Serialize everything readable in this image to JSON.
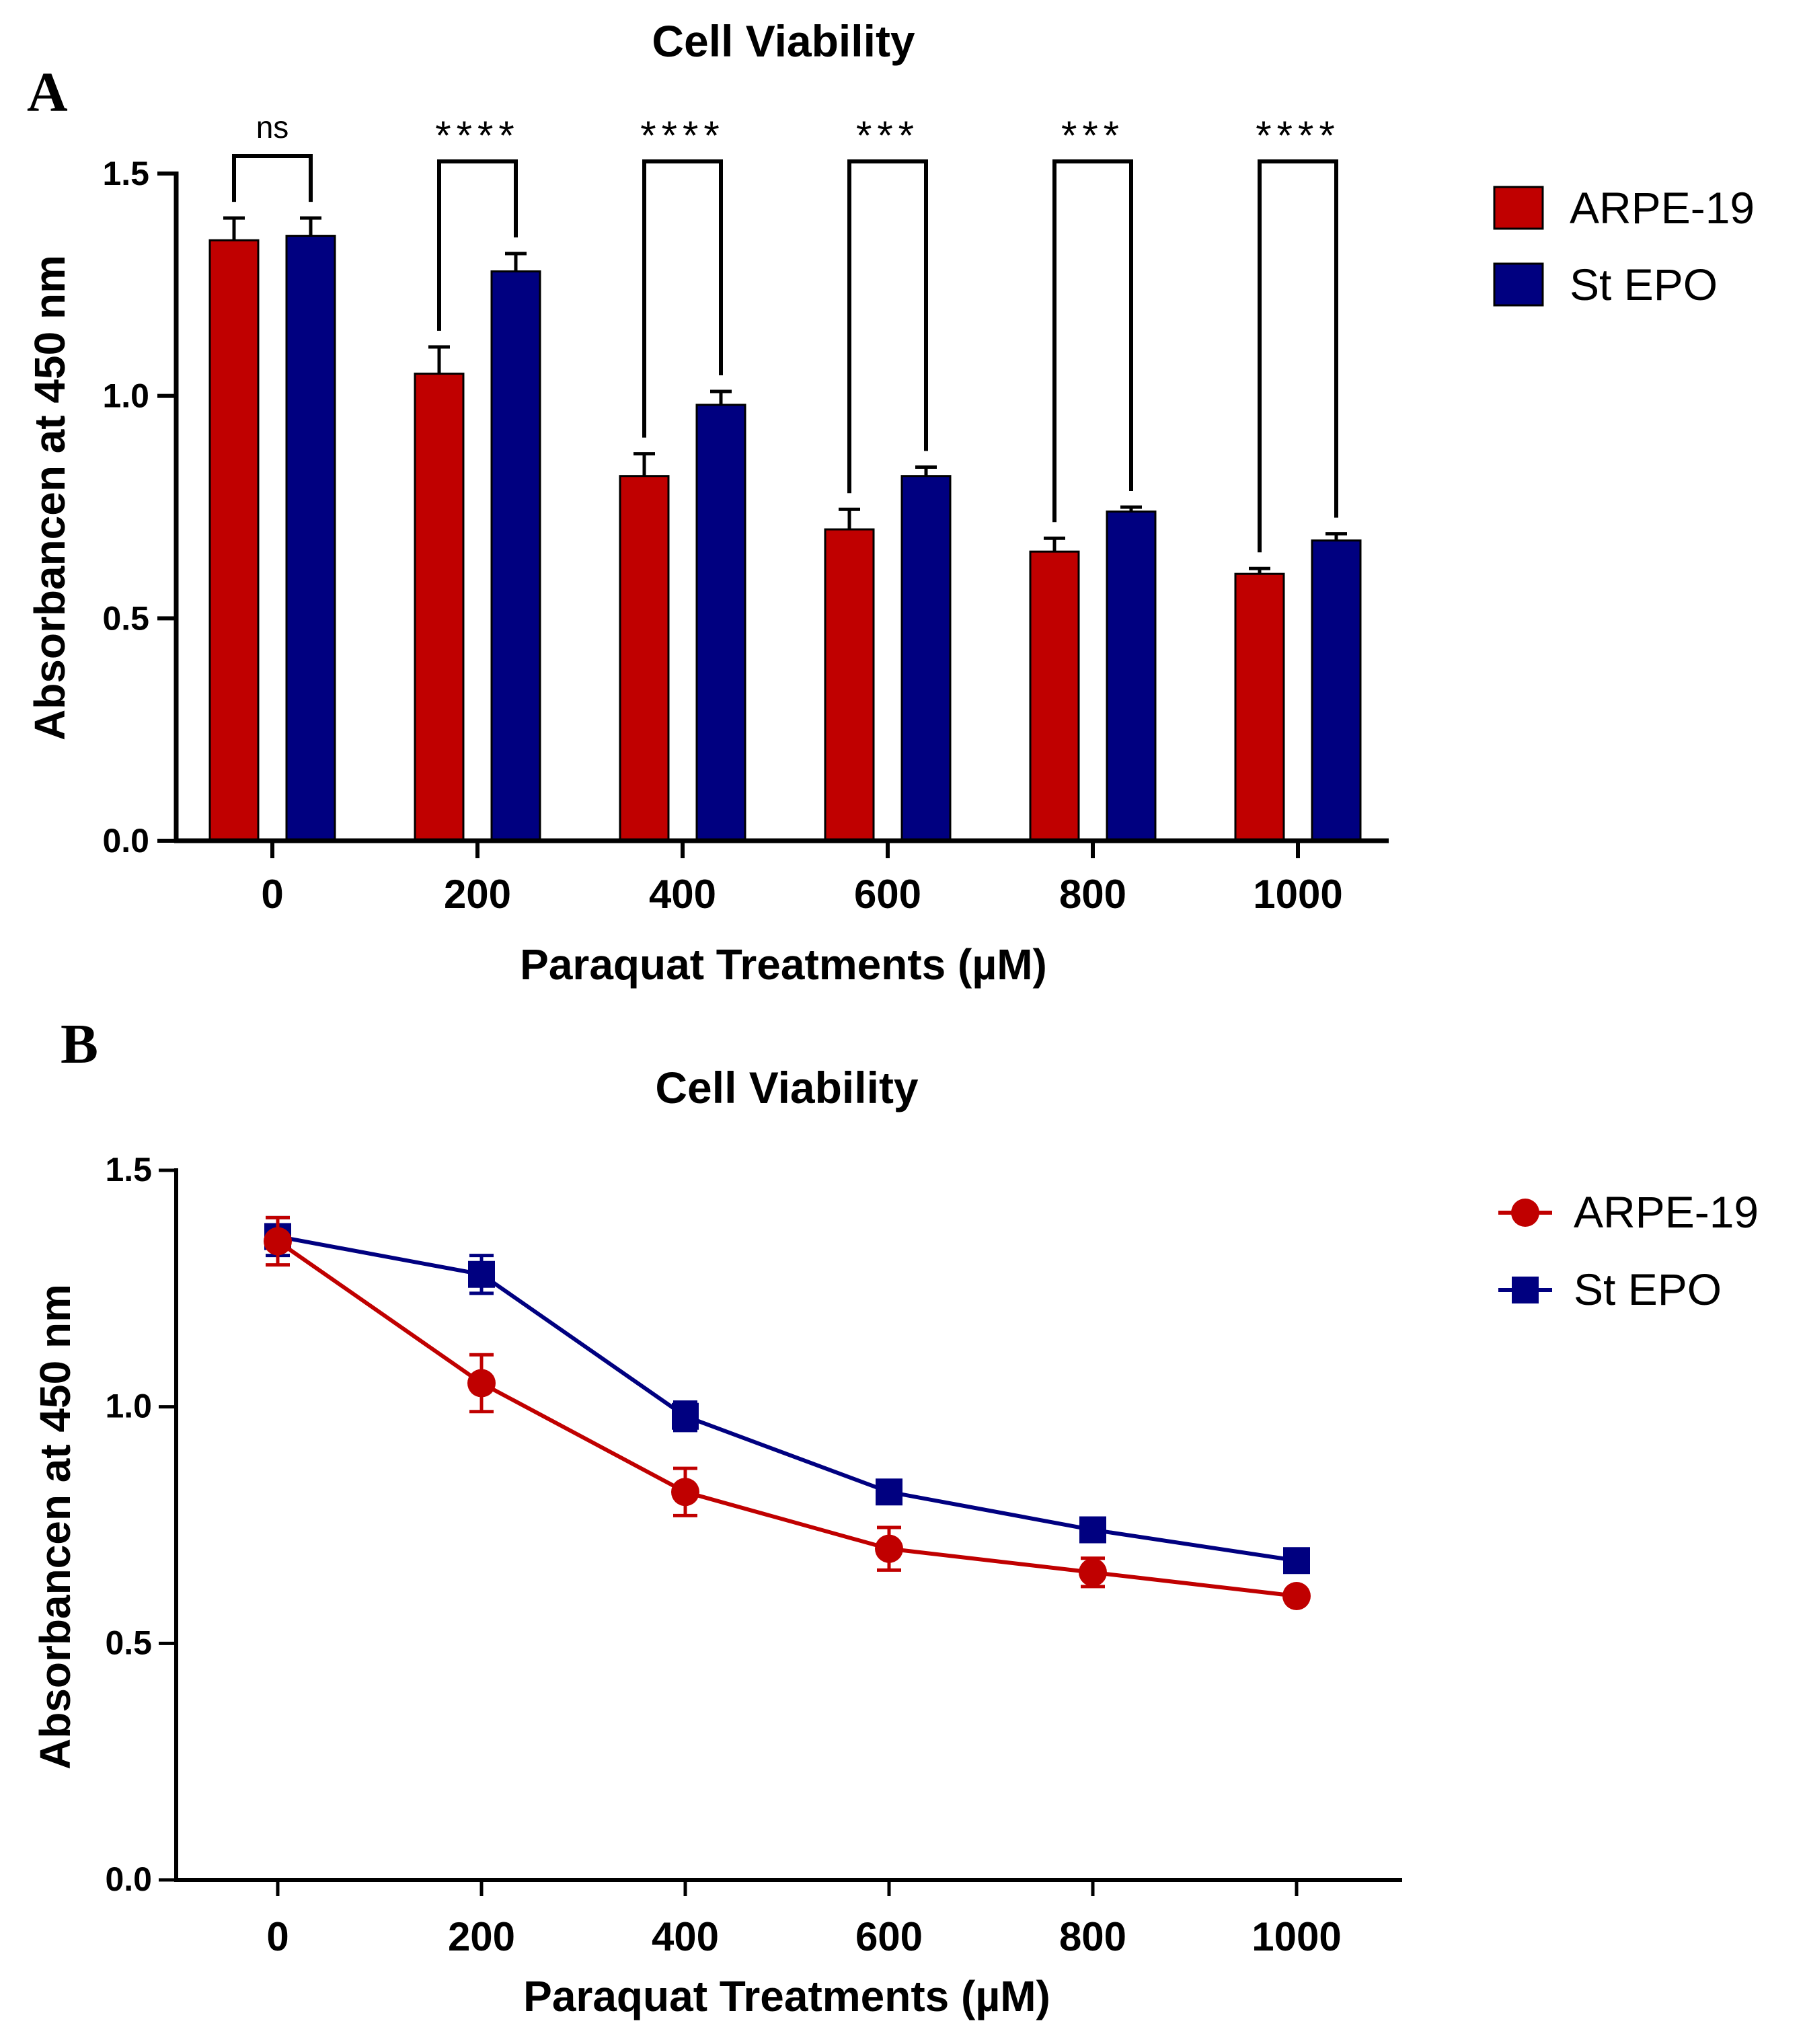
{
  "figure": {
    "panel_a_letter": "A",
    "panel_b_letter": "B"
  },
  "chart_data": [
    {
      "type": "bar",
      "title": "Cell Viability",
      "xlabel": "Paraquat Treatments (µM)",
      "ylabel": "Absorbancen at 450 nm",
      "categories": [
        "0",
        "200",
        "400",
        "600",
        "800",
        "1000"
      ],
      "ylim": [
        0,
        1.5
      ],
      "yticks": [
        "0.0",
        "0.5",
        "1.0",
        "1.5"
      ],
      "series": [
        {
          "name": "ARPE-19",
          "color": "#c00000",
          "values": [
            1.35,
            1.05,
            0.82,
            0.7,
            0.65,
            0.6
          ],
          "errors": [
            0.05,
            0.06,
            0.05,
            0.045,
            0.03,
            0.012
          ]
        },
        {
          "name": "St EPO",
          "color": "#000080",
          "values": [
            1.36,
            1.28,
            0.98,
            0.82,
            0.74,
            0.675
          ],
          "errors": [
            0.04,
            0.04,
            0.03,
            0.02,
            0.01,
            0.015
          ]
        }
      ],
      "significance": [
        "ns",
        "****",
        "****",
        "***",
        "***",
        "****"
      ],
      "legend_position": "right"
    },
    {
      "type": "line",
      "title": "Cell Viability",
      "xlabel": "Paraquat Treatments (µM)",
      "ylabel": "Absorbancen at 450 nm",
      "x": [
        0,
        200,
        400,
        600,
        800,
        1000
      ],
      "xticks": [
        "0",
        "200",
        "400",
        "600",
        "800",
        "1000"
      ],
      "ylim": [
        0,
        1.5
      ],
      "yticks": [
        "0.0",
        "0.5",
        "1.0",
        "1.5"
      ],
      "series": [
        {
          "name": "ARPE-19",
          "color": "#c00000",
          "marker": "circle",
          "values": [
            1.35,
            1.05,
            0.82,
            0.7,
            0.65,
            0.6
          ],
          "errors": [
            0.05,
            0.06,
            0.05,
            0.045,
            0.03,
            0.012
          ]
        },
        {
          "name": "St EPO",
          "color": "#000080",
          "marker": "square",
          "values": [
            1.36,
            1.28,
            0.98,
            0.82,
            0.74,
            0.675
          ],
          "errors": [
            0.04,
            0.04,
            0.03,
            0.02,
            0.01,
            0.015
          ]
        }
      ],
      "legend_position": "right"
    }
  ]
}
